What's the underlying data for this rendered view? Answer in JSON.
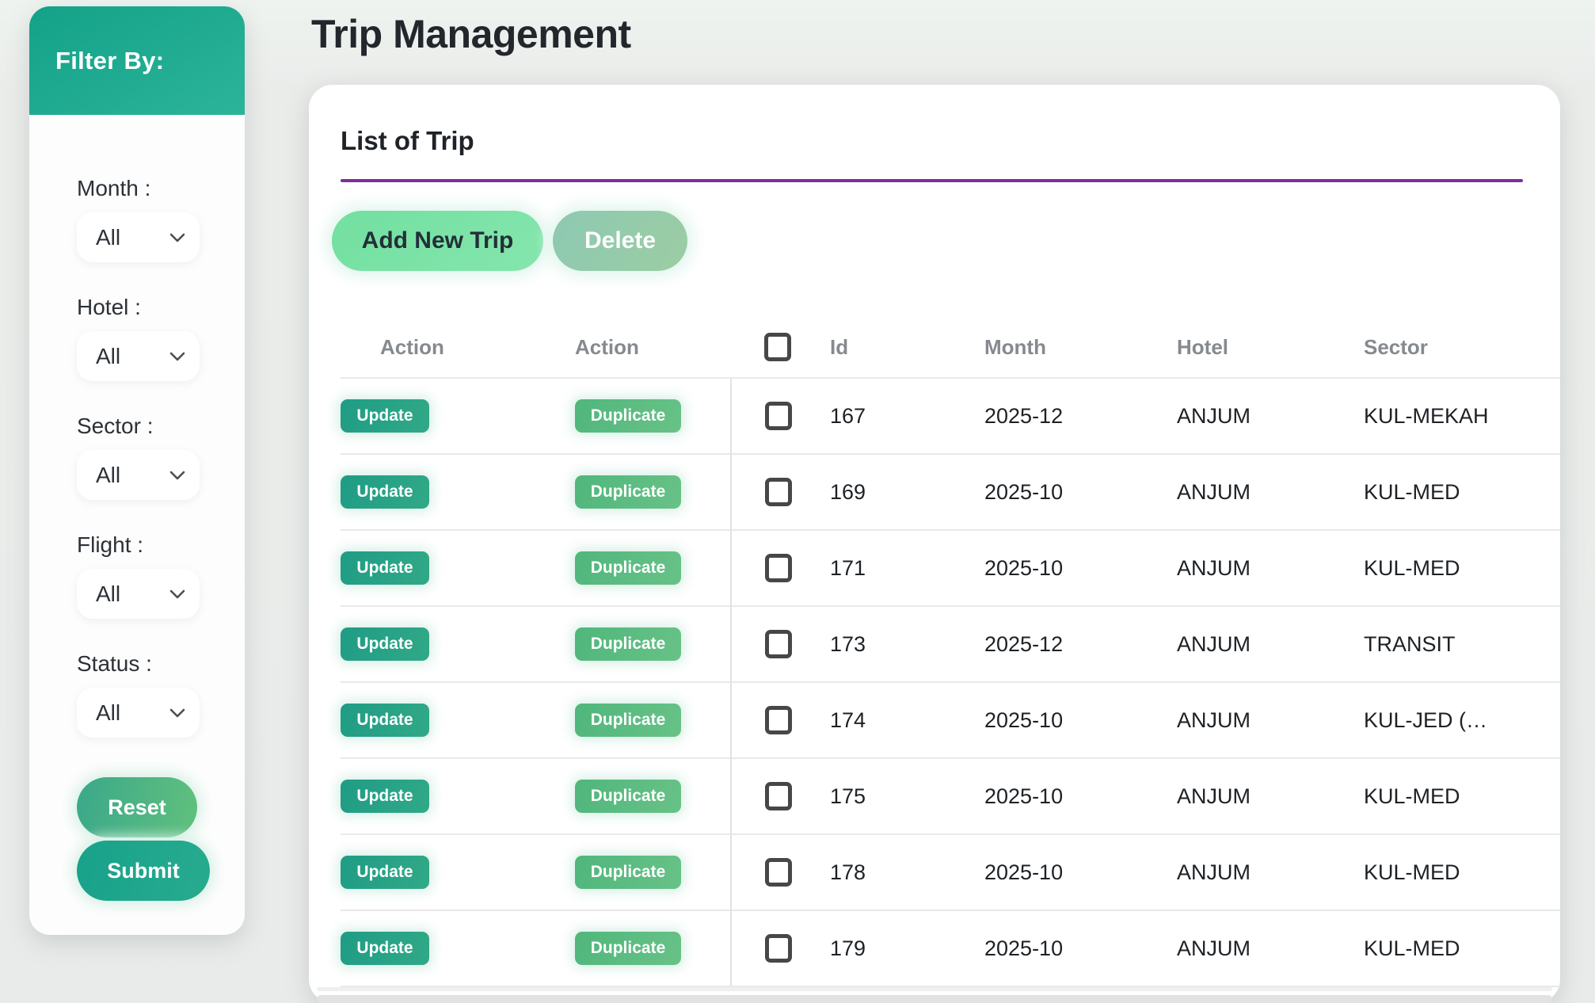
{
  "page": {
    "title": "Trip Management"
  },
  "colors": {
    "accent_teal": "#1fa78e",
    "button_light_green": "#7de2a6",
    "button_muted_green": "#95cbab",
    "heading_divider_purple": "#7d3097"
  },
  "sidebar": {
    "header": "Filter By:",
    "filters": [
      {
        "label": "Month :",
        "value": "All"
      },
      {
        "label": "Hotel :",
        "value": "All"
      },
      {
        "label": "Sector :",
        "value": "All"
      },
      {
        "label": "Flight :",
        "value": "All"
      },
      {
        "label": "Status :",
        "value": "All"
      }
    ],
    "reset_label": "Reset",
    "submit_label": "Submit"
  },
  "card": {
    "heading": "List of Trip",
    "add_button_label": "Add New Trip",
    "delete_button_label": "Delete"
  },
  "table": {
    "headers": {
      "action1": "Action",
      "action2": "Action",
      "id": "Id",
      "month": "Month",
      "hotel": "Hotel",
      "sector": "Sector"
    },
    "row_buttons": {
      "update": "Update",
      "duplicate": "Duplicate"
    },
    "rows": [
      {
        "id": "167",
        "month": "2025-12",
        "hotel": "ANJUM",
        "sector": "KUL-MEKAH"
      },
      {
        "id": "169",
        "month": "2025-10",
        "hotel": "ANJUM",
        "sector": "KUL-MED"
      },
      {
        "id": "171",
        "month": "2025-10",
        "hotel": "ANJUM",
        "sector": "KUL-MED"
      },
      {
        "id": "173",
        "month": "2025-12",
        "hotel": "ANJUM",
        "sector": "TRANSIT"
      },
      {
        "id": "174",
        "month": "2025-10",
        "hotel": "ANJUM",
        "sector": "KUL-JED (…"
      },
      {
        "id": "175",
        "month": "2025-10",
        "hotel": "ANJUM",
        "sector": "KUL-MED"
      },
      {
        "id": "178",
        "month": "2025-10",
        "hotel": "ANJUM",
        "sector": "KUL-MED"
      },
      {
        "id": "179",
        "month": "2025-10",
        "hotel": "ANJUM",
        "sector": "KUL-MED"
      }
    ]
  }
}
